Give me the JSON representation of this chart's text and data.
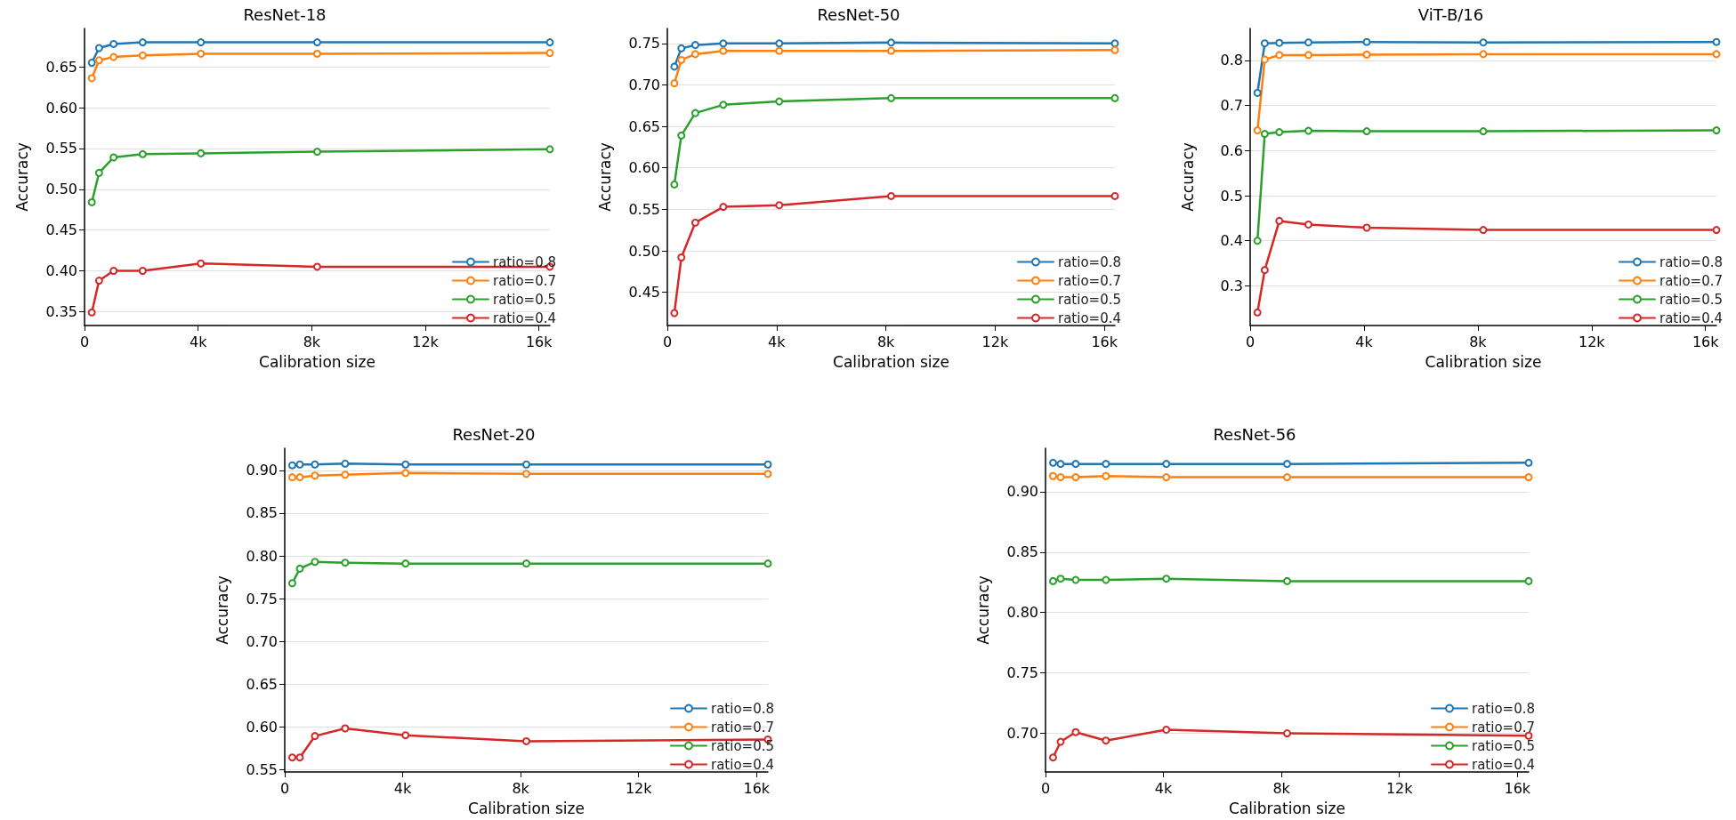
{
  "chart_data": [
    {
      "type": "line",
      "title": "ResNet-18",
      "xlabel": "Calibration size",
      "ylabel": "Accuracy",
      "x": [
        256,
        512,
        1024,
        2048,
        4096,
        8192,
        16384
      ],
      "xlim": [
        0,
        16384
      ],
      "xticks": [
        {
          "value": 0,
          "label": "0"
        },
        {
          "value": 4000,
          "label": "4k"
        },
        {
          "value": 8000,
          "label": "8k"
        },
        {
          "value": 12000,
          "label": "12k"
        },
        {
          "value": 16000,
          "label": "16k"
        }
      ],
      "ylim": [
        0.333,
        0.697
      ],
      "yticks": [
        0.35,
        {
          "value": 0.4,
          "label": "0.40"
        },
        0.45,
        {
          "value": 0.5,
          "label": "0.50"
        },
        0.55,
        {
          "value": 0.6,
          "label": "0.60"
        },
        0.65
      ],
      "grid": "y",
      "legend": "bottom right",
      "marker": "circle",
      "line_style": "solid",
      "series": [
        {
          "name": "ratio=0.8",
          "color": "#1f77b4",
          "values": [
            0.655,
            0.673,
            0.678,
            0.68,
            0.68,
            0.68,
            0.68
          ]
        },
        {
          "name": "ratio=0.7",
          "color": "#ff7f0e",
          "values": [
            0.636,
            0.658,
            0.662,
            0.664,
            0.666,
            0.666,
            0.667
          ]
        },
        {
          "name": "ratio=0.5",
          "color": "#2ca02c",
          "values": [
            0.484,
            0.52,
            0.539,
            0.543,
            0.544,
            0.546,
            0.549
          ]
        },
        {
          "name": "ratio=0.4",
          "color": "#d62728",
          "values": [
            0.349,
            0.388,
            0.4,
            0.4,
            0.409,
            0.405,
            0.405
          ]
        }
      ]
    },
    {
      "type": "line",
      "title": "ResNet-50",
      "xlabel": "Calibration size",
      "ylabel": "Accuracy",
      "x": [
        256,
        512,
        1024,
        2048,
        4096,
        8192,
        16384
      ],
      "xlim": [
        0,
        16384
      ],
      "xticks": [
        {
          "value": 0,
          "label": "0"
        },
        {
          "value": 4000,
          "label": "4k"
        },
        {
          "value": 8000,
          "label": "8k"
        },
        {
          "value": 12000,
          "label": "12k"
        },
        {
          "value": 16000,
          "label": "16k"
        }
      ],
      "ylim": [
        0.41,
        0.768
      ],
      "yticks": [
        0.45,
        {
          "value": 0.5,
          "label": "0.50"
        },
        0.55,
        {
          "value": 0.6,
          "label": "0.60"
        },
        0.65,
        {
          "value": 0.7,
          "label": "0.70"
        },
        0.75
      ],
      "grid": "y",
      "legend": "bottom right",
      "marker": "circle",
      "line_style": "solid",
      "series": [
        {
          "name": "ratio=0.8",
          "color": "#1f77b4",
          "values": [
            0.722,
            0.744,
            0.748,
            0.75,
            0.75,
            0.751,
            0.75
          ]
        },
        {
          "name": "ratio=0.7",
          "color": "#ff7f0e",
          "values": [
            0.702,
            0.73,
            0.737,
            0.741,
            0.741,
            0.741,
            0.742
          ]
        },
        {
          "name": "ratio=0.5",
          "color": "#2ca02c",
          "values": [
            0.58,
            0.639,
            0.666,
            0.676,
            0.68,
            0.684,
            0.684
          ]
        },
        {
          "name": "ratio=0.4",
          "color": "#d62728",
          "values": [
            0.425,
            0.492,
            0.534,
            0.553,
            0.555,
            0.566,
            0.566
          ]
        }
      ]
    },
    {
      "type": "line",
      "title": "ViT-B/16",
      "xlabel": "Calibration size",
      "ylabel": "Accuracy",
      "x": [
        256,
        512,
        1024,
        2048,
        4096,
        8192,
        16384
      ],
      "xlim": [
        0,
        16384
      ],
      "xticks": [
        {
          "value": 0,
          "label": "0"
        },
        {
          "value": 4000,
          "label": "4k"
        },
        {
          "value": 8000,
          "label": "8k"
        },
        {
          "value": 12000,
          "label": "12k"
        },
        {
          "value": 16000,
          "label": "16k"
        }
      ],
      "ylim": [
        0.212,
        0.871
      ],
      "yticks": [
        0.3,
        0.4,
        0.5,
        0.6,
        0.7,
        0.8
      ],
      "grid": "y",
      "legend": "bottom right",
      "marker": "circle",
      "line_style": "solid",
      "series": [
        {
          "name": "ratio=0.8",
          "color": "#1f77b4",
          "values": [
            0.728,
            0.838,
            0.839,
            0.84,
            0.841,
            0.84,
            0.841
          ]
        },
        {
          "name": "ratio=0.7",
          "color": "#ff7f0e",
          "values": [
            0.645,
            0.802,
            0.812,
            0.812,
            0.813,
            0.814,
            0.814
          ]
        },
        {
          "name": "ratio=0.5",
          "color": "#2ca02c",
          "values": [
            0.4,
            0.637,
            0.641,
            0.644,
            0.643,
            0.643,
            0.645
          ]
        },
        {
          "name": "ratio=0.4",
          "color": "#d62728",
          "values": [
            0.241,
            0.335,
            0.444,
            0.436,
            0.429,
            0.424,
            0.424
          ]
        }
      ]
    },
    {
      "type": "line",
      "title": "ResNet-20",
      "xlabel": "Calibration size",
      "ylabel": "Accuracy",
      "x": [
        256,
        512,
        1024,
        2048,
        4096,
        8192,
        16384
      ],
      "xlim": [
        0,
        16384
      ],
      "xticks": [
        {
          "value": 0,
          "label": "0"
        },
        {
          "value": 4000,
          "label": "4k"
        },
        {
          "value": 8000,
          "label": "8k"
        },
        {
          "value": 12000,
          "label": "12k"
        },
        {
          "value": 16000,
          "label": "16k"
        }
      ],
      "ylim": [
        0.547,
        0.926
      ],
      "yticks": [
        0.55,
        {
          "value": 0.6,
          "label": "0.60"
        },
        0.65,
        {
          "value": 0.7,
          "label": "0.70"
        },
        0.75,
        {
          "value": 0.8,
          "label": "0.80"
        },
        0.85,
        {
          "value": 0.9,
          "label": "0.90"
        }
      ],
      "grid": "y",
      "legend": "bottom right",
      "marker": "circle",
      "line_style": "solid",
      "series": [
        {
          "name": "ratio=0.8",
          "color": "#1f77b4",
          "values": [
            0.906,
            0.907,
            0.907,
            0.908,
            0.907,
            0.907,
            0.907
          ]
        },
        {
          "name": "ratio=0.7",
          "color": "#ff7f0e",
          "values": [
            0.892,
            0.892,
            0.894,
            0.895,
            0.897,
            0.896,
            0.896
          ]
        },
        {
          "name": "ratio=0.5",
          "color": "#2ca02c",
          "values": [
            0.768,
            0.785,
            0.793,
            0.792,
            0.791,
            0.791,
            0.791
          ]
        },
        {
          "name": "ratio=0.4",
          "color": "#d62728",
          "values": [
            0.564,
            0.564,
            0.589,
            0.598,
            0.59,
            0.583,
            0.585
          ]
        }
      ]
    },
    {
      "type": "line",
      "title": "ResNet-56",
      "xlabel": "Calibration size",
      "ylabel": "Accuracy",
      "x": [
        256,
        512,
        1024,
        2048,
        4096,
        8192,
        16384
      ],
      "xlim": [
        0,
        16384
      ],
      "xticks": [
        {
          "value": 0,
          "label": "0"
        },
        {
          "value": 4000,
          "label": "4k"
        },
        {
          "value": 8000,
          "label": "8k"
        },
        {
          "value": 12000,
          "label": "12k"
        },
        {
          "value": 16000,
          "label": "16k"
        }
      ],
      "ylim": [
        0.668,
        0.936
      ],
      "yticks": [
        {
          "value": 0.7,
          "label": "0.70"
        },
        0.75,
        {
          "value": 0.8,
          "label": "0.80"
        },
        0.85,
        {
          "value": 0.9,
          "label": "0.90"
        }
      ],
      "grid": "y",
      "legend": "bottom right",
      "marker": "circle",
      "line_style": "solid",
      "series": [
        {
          "name": "ratio=0.8",
          "color": "#1f77b4",
          "values": [
            0.924,
            0.923,
            0.923,
            0.923,
            0.923,
            0.923,
            0.924
          ]
        },
        {
          "name": "ratio=0.7",
          "color": "#ff7f0e",
          "values": [
            0.913,
            0.912,
            0.912,
            0.913,
            0.912,
            0.912,
            0.912
          ]
        },
        {
          "name": "ratio=0.5",
          "color": "#2ca02c",
          "values": [
            0.826,
            0.828,
            0.827,
            0.827,
            0.828,
            0.826,
            0.826
          ]
        },
        {
          "name": "ratio=0.4",
          "color": "#d62728",
          "values": [
            0.68,
            0.693,
            0.701,
            0.694,
            0.703,
            0.7,
            0.698
          ]
        }
      ]
    }
  ]
}
